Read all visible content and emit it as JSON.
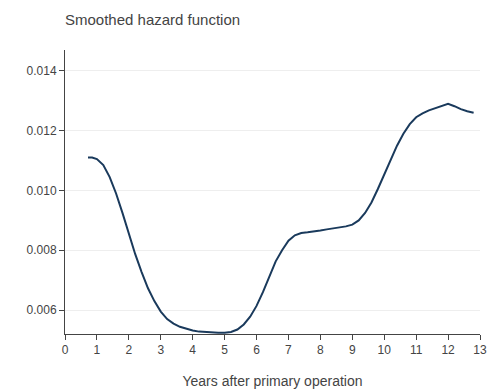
{
  "chart_data": {
    "type": "line",
    "title": "Smoothed hazard function",
    "xlabel": "Years after primary operation",
    "color": "#1a3a5c",
    "grid": "y",
    "xlim": [
      0,
      13
    ],
    "ylim": [
      0.0052,
      0.0147
    ],
    "xticks": [
      0,
      1,
      2,
      3,
      4,
      5,
      6,
      7,
      8,
      9,
      10,
      11,
      12,
      13
    ],
    "yticks": [
      0.006,
      0.008,
      {
        "value": 0.01,
        "label": "0.010"
      },
      0.012,
      0.014
    ],
    "x": [
      0.72,
      0.85,
      1.0,
      1.2,
      1.4,
      1.6,
      1.8,
      2.0,
      2.2,
      2.4,
      2.6,
      2.8,
      3.0,
      3.2,
      3.4,
      3.6,
      3.8,
      4.0,
      4.2,
      4.4,
      4.6,
      4.8,
      5.0,
      5.2,
      5.4,
      5.6,
      5.8,
      6.0,
      6.2,
      6.4,
      6.6,
      6.8,
      7.0,
      7.2,
      7.4,
      7.6,
      7.8,
      8.0,
      8.2,
      8.4,
      8.6,
      8.8,
      9.0,
      9.2,
      9.4,
      9.6,
      9.8,
      10.0,
      10.2,
      10.4,
      10.6,
      10.8,
      11.0,
      11.2,
      11.4,
      11.6,
      11.8,
      12.0,
      12.2,
      12.4,
      12.6,
      12.8
    ],
    "values": [
      0.0111,
      0.0111,
      0.01105,
      0.01085,
      0.01045,
      0.0099,
      0.00925,
      0.00855,
      0.00787,
      0.00727,
      0.00673,
      0.0063,
      0.00595,
      0.0057,
      0.00555,
      0.00544,
      0.00537,
      0.00532,
      0.00528,
      0.00526,
      0.00525,
      0.00524,
      0.00524,
      0.00527,
      0.00535,
      0.00552,
      0.00578,
      0.00614,
      0.0066,
      0.00715,
      0.00763,
      0.008,
      0.00832,
      0.0085,
      0.00858,
      0.0086,
      0.00862,
      0.00866,
      0.0087,
      0.00873,
      0.00876,
      0.0088,
      0.00886,
      0.009,
      0.00925,
      0.0096,
      0.01005,
      0.01055,
      0.01105,
      0.0115,
      0.0119,
      0.01222,
      0.01245,
      0.01258,
      0.01268,
      0.01276,
      0.01284,
      0.0129,
      0.01282,
      0.01272,
      0.01265,
      0.0126
    ]
  }
}
